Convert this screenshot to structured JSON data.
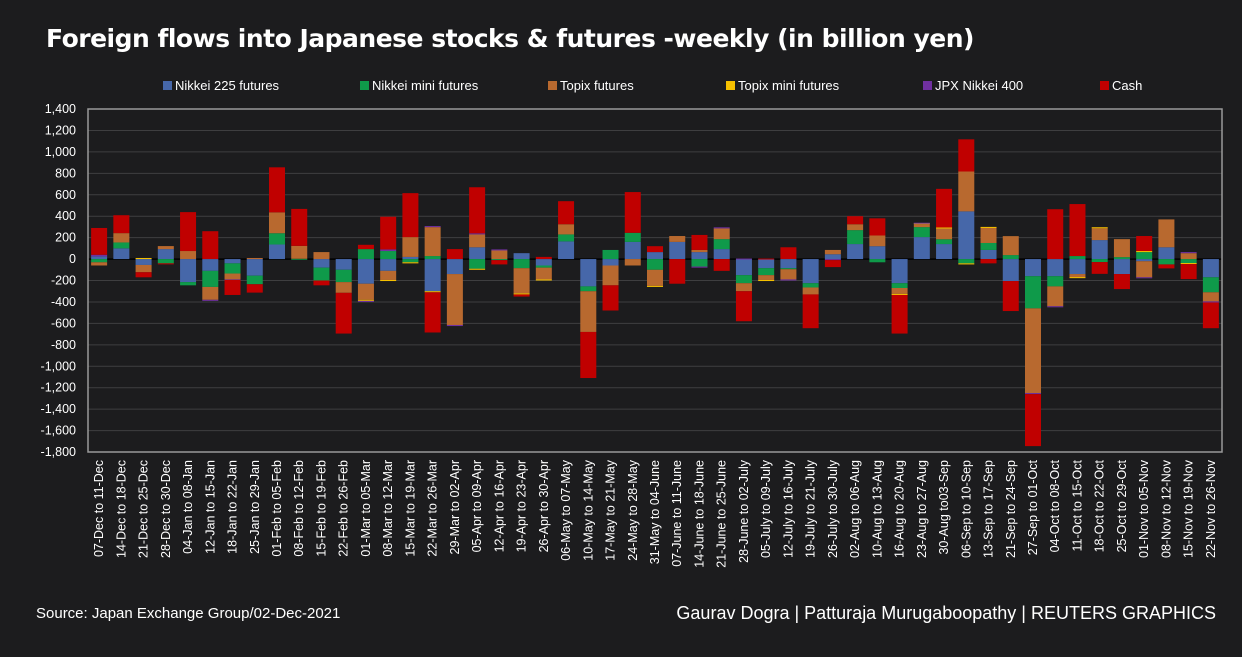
{
  "chart_data": {
    "type": "bar",
    "stacked": true,
    "title": "Foreign flows into Japanese stocks & futures -weekly (in billion yen)",
    "xlabel": "",
    "ylabel": "",
    "ylim": [
      -1800,
      1400
    ],
    "yticks": [
      1400,
      1200,
      1000,
      800,
      600,
      400,
      200,
      0,
      -200,
      -400,
      -600,
      -800,
      -1000,
      -1200,
      -1400,
      -1600,
      -1800
    ],
    "ytick_labels": [
      "1,400",
      "1,200",
      "1,000",
      "800",
      "600",
      "400",
      "200",
      "0",
      "-200",
      "-400",
      "-600",
      "-800",
      "-1,000",
      "-1,200",
      "-1,400",
      "-1,600",
      "-1,800"
    ],
    "grid": true,
    "legend_position": "top",
    "categories": [
      "07-Dec to 11-Dec",
      "14-Dec to 18-Dec",
      "21-Dec to 25-Dec",
      "28-Dec to 30-Dec",
      "04-Jan to 08-Jan",
      "12-Jan to 15-Jan",
      "18-Jan to 22-Jan",
      "25-Jan to 29-Jan",
      "01-Feb to 05-Feb",
      "08-Feb to 12-Feb",
      "15-Feb to 19-Feb",
      "22-Feb to 26-Feb",
      "01-Mar to 05-Mar",
      "08-Mar to 12-Mar",
      "15-Mar to 19-Mar",
      "22-Mar to 26-Mar",
      "29-Mar to 02-Apr",
      "05-Apr to 09-Apr",
      "12-Apr to 16-Apr",
      "19-Apr to 23-Apr",
      "26-Apr to 30-Apr",
      "06-May to 07-May",
      "10-May to 14-May",
      "17-May to 21-May",
      "24-May to 28-May",
      "31-May to 04-June",
      "07-June to 11-June",
      "14-June to 18-June",
      "21-June to 25-June",
      "28-June to 02-July",
      "05-July to 09-July",
      "12-July to 16-July",
      "19-July to 21-July",
      "26-July to 30-July",
      "02-Aug to 06-Aug",
      "10-Aug to 13-Aug",
      "16-Aug to 20-Aug",
      "23-Aug to 27-Aug",
      "30-Aug to03-Sep",
      "06-Sep to 10-Sep",
      "13-Sep to 17-Sep",
      "21-Sep to 24-Sep",
      "27-Sep to 01-Oct",
      "04-Oct to 08-Oct",
      "11-Oct to 15-Oct",
      "18-Oct to 22-Oct",
      "25-Oct to 29-Oct",
      "01-Nov to 05-Nov",
      "08-Nov to 12-Nov",
      "15-Nov to 19-Nov",
      "22-Nov to 26-Nov"
    ],
    "series": [
      {
        "name": "Nikkei 225 futures",
        "color": "#4667a9",
        "values": [
          25,
          100,
          -55,
          93,
          -215,
          -110,
          -40,
          -155,
          136,
          0,
          -80,
          -100,
          -230,
          -110,
          20,
          -300,
          -140,
          110,
          0,
          55,
          -60,
          165,
          -255,
          -60,
          160,
          65,
          160,
          65,
          93,
          -150,
          -85,
          -85,
          -225,
          45,
          140,
          120,
          -225,
          205,
          140,
          445,
          85,
          -205,
          -160,
          -160,
          -140,
          177,
          -140,
          -20,
          110,
          0,
          -170
        ]
      },
      {
        "name": "Nikkei mini futures",
        "color": "#0f9a4a",
        "values": [
          -30,
          55,
          0,
          -40,
          -30,
          -150,
          -95,
          -80,
          105,
          3,
          -120,
          -115,
          93,
          75,
          -30,
          28,
          0,
          -90,
          -10,
          -85,
          -20,
          65,
          -45,
          85,
          85,
          -100,
          0,
          -70,
          93,
          -75,
          -65,
          -10,
          -40,
          0,
          130,
          -30,
          -45,
          93,
          45,
          -40,
          65,
          37,
          -300,
          -95,
          28,
          -28,
          18,
          65,
          -50,
          -37,
          -140
        ]
      },
      {
        "name": "Topix futures",
        "color": "#b8692f",
        "values": [
          -30,
          87,
          -68,
          28,
          75,
          -120,
          -55,
          10,
          195,
          120,
          65,
          -100,
          -150,
          -85,
          185,
          270,
          -475,
          120,
          80,
          -235,
          -110,
          95,
          -380,
          -185,
          -60,
          -150,
          55,
          20,
          100,
          -75,
          -45,
          -95,
          -65,
          40,
          55,
          100,
          -55,
          28,
          100,
          372,
          140,
          177,
          -790,
          -185,
          -28,
          110,
          168,
          -150,
          260,
          55,
          -85
        ]
      },
      {
        "name": "Topix mini futures",
        "color": "#f5c000",
        "values": [
          0,
          0,
          10,
          0,
          0,
          0,
          0,
          0,
          0,
          0,
          0,
          0,
          -10,
          -10,
          -10,
          -10,
          0,
          -10,
          0,
          -10,
          -10,
          0,
          0,
          0,
          0,
          -10,
          0,
          0,
          0,
          0,
          -10,
          0,
          0,
          0,
          0,
          0,
          -10,
          10,
          10,
          -10,
          10,
          0,
          0,
          0,
          -10,
          10,
          0,
          10,
          0,
          -10,
          0
        ]
      },
      {
        "name": "JPX Nikkei 400",
        "color": "#7030a0",
        "values": [
          15,
          0,
          0,
          0,
          0,
          -10,
          -5,
          0,
          0,
          0,
          0,
          0,
          -10,
          15,
          0,
          10,
          -10,
          10,
          10,
          0,
          0,
          0,
          0,
          0,
          0,
          0,
          0,
          -10,
          10,
          5,
          0,
          -10,
          0,
          -10,
          0,
          0,
          0,
          3,
          0,
          0,
          0,
          0,
          -10,
          -10,
          0,
          0,
          0,
          -5,
          0,
          10,
          -10
        ]
      },
      {
        "name": "Cash",
        "color": "#c00000",
        "values": [
          250,
          167,
          -47,
          -8,
          363,
          260,
          -140,
          -78,
          420,
          345,
          -45,
          -380,
          40,
          305,
          410,
          -375,
          93,
          430,
          -40,
          -20,
          20,
          215,
          -430,
          -235,
          380,
          55,
          -230,
          140,
          -110,
          -280,
          5,
          110,
          -315,
          -65,
          75,
          160,
          -360,
          0,
          360,
          300,
          -40,
          -280,
          -485,
          465,
          485,
          -110,
          -140,
          140,
          -37,
          -140,
          -240
        ]
      }
    ]
  },
  "footer": {
    "source": "Source: Japan Exchange Group/02-Dec-2021",
    "credit": "Gaurav Dogra | Patturaja Murugaboopathy | REUTERS GRAPHICS"
  }
}
